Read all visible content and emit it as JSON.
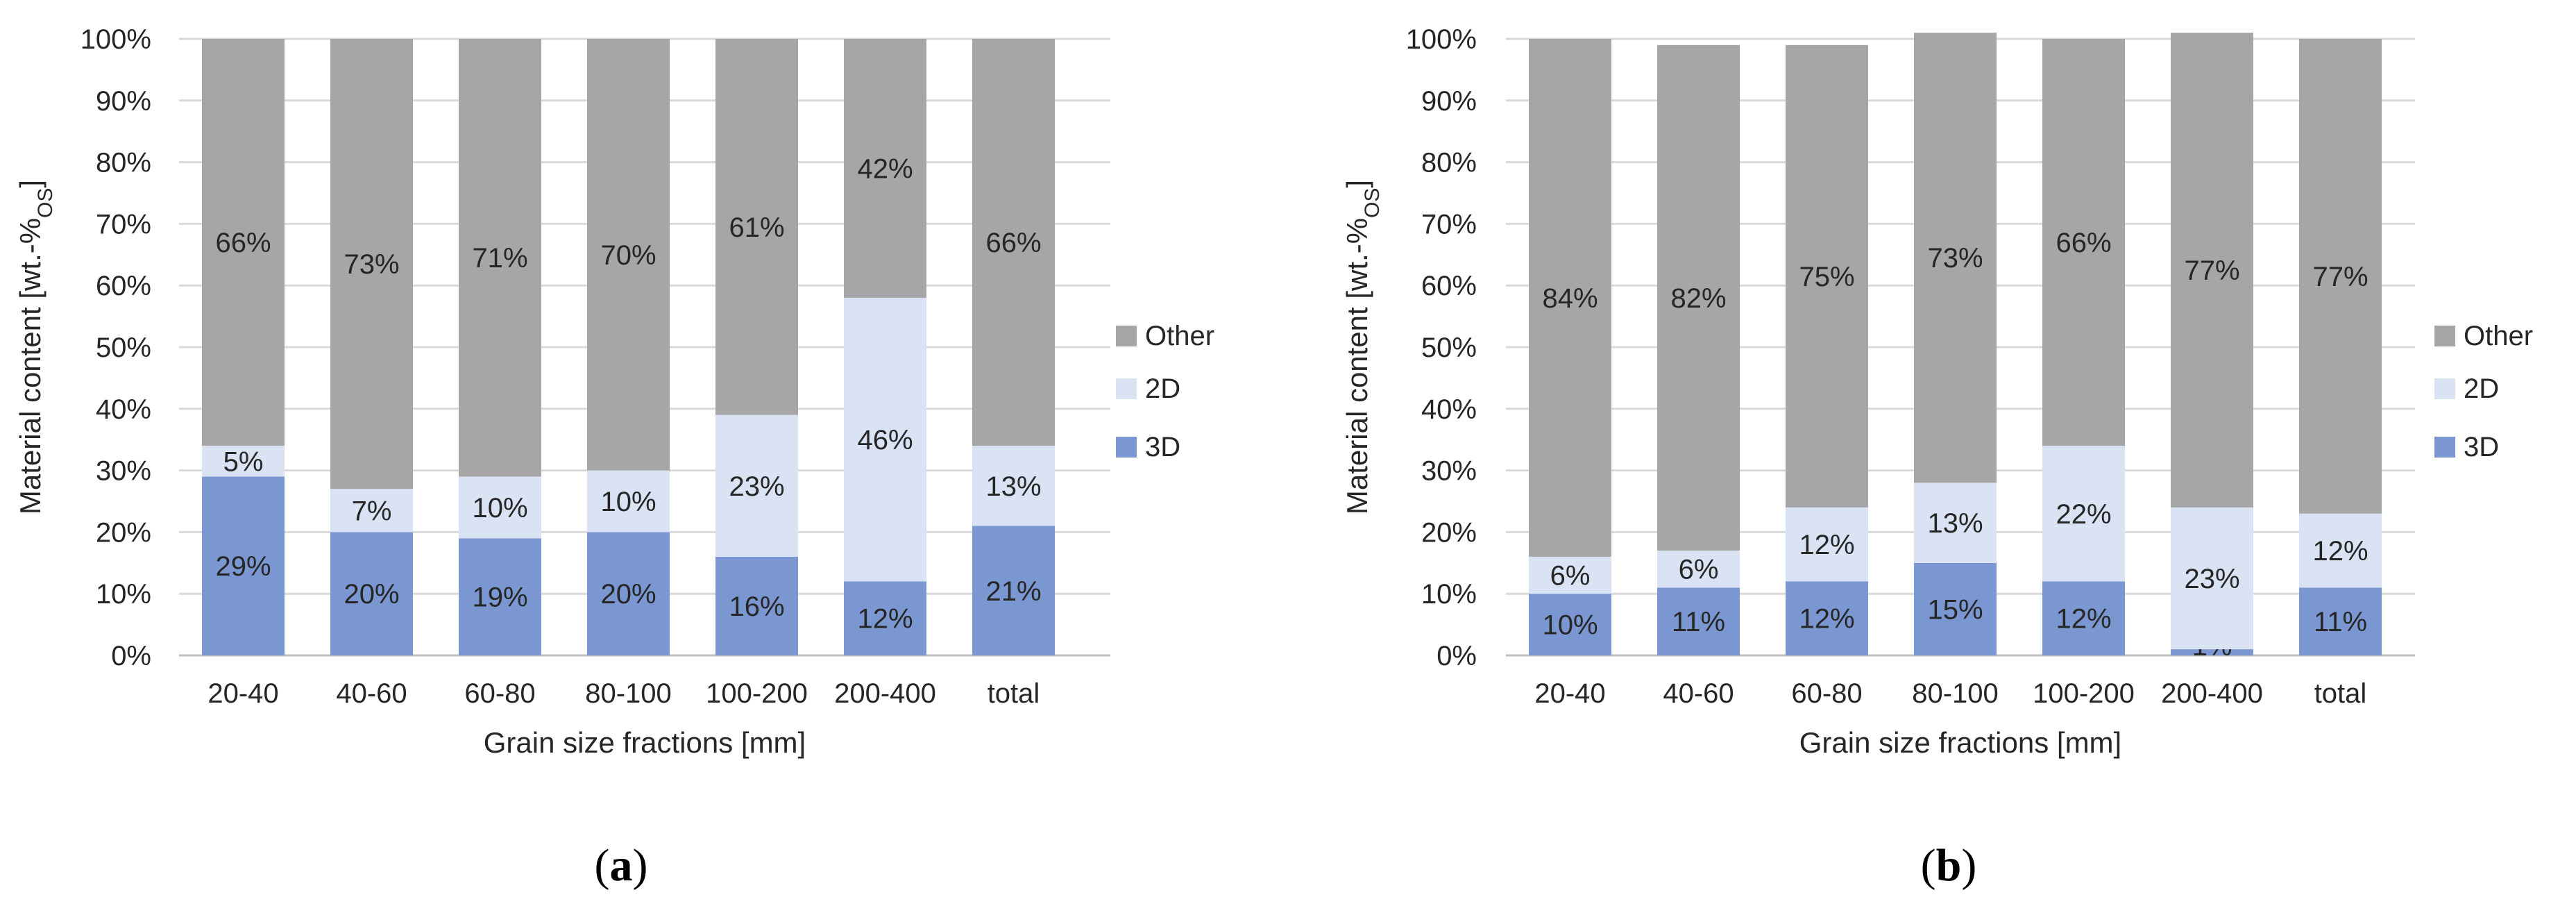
{
  "panels": [
    {
      "caption_letter": "a",
      "chart_data": {
        "type": "bar",
        "stacked": true,
        "percent": true,
        "categories": [
          "20-40",
          "40-60",
          "60-80",
          "80-100",
          "100-200",
          "200-400",
          "total"
        ],
        "series": [
          {
            "name": "3D",
            "values": [
              29,
              20,
              19,
              20,
              16,
              12,
              21
            ],
            "color": "#7b97d1"
          },
          {
            "name": "2D",
            "values": [
              5,
              7,
              10,
              10,
              23,
              46,
              13
            ],
            "color": "#dae3f4"
          },
          {
            "name": "Other",
            "values": [
              66,
              73,
              71,
              70,
              61,
              42,
              66
            ],
            "color": "#a6a6a6"
          }
        ],
        "data_labels": {
          "3D": [
            "29%",
            "20%",
            "19%",
            "20%",
            "16%",
            "12%",
            "21%"
          ],
          "2D": [
            "5%",
            "7%",
            "10%",
            "10%",
            "23%",
            "46%",
            "13%"
          ],
          "Other": [
            "66%",
            "73%",
            "71%",
            "70%",
            "61%",
            "42%",
            "66%"
          ]
        },
        "xlabel": "Grain size fractions [mm]",
        "ylabel": "Material content [wt.-%",
        "ylabel_sub": "OS",
        "ylabel_end": "]",
        "ylim": [
          0,
          100
        ],
        "yticks": [
          "0%",
          "10%",
          "20%",
          "30%",
          "40%",
          "50%",
          "60%",
          "70%",
          "80%",
          "90%",
          "100%"
        ],
        "legend": [
          "Other",
          "2D",
          "3D"
        ],
        "legend_placement": "right",
        "grid": true
      }
    },
    {
      "caption_letter": "b",
      "chart_data": {
        "type": "bar",
        "stacked": true,
        "percent": true,
        "categories": [
          "20-40",
          "40-60",
          "60-80",
          "80-100",
          "100-200",
          "200-400",
          "total"
        ],
        "series": [
          {
            "name": "3D",
            "values": [
              10,
              11,
              12,
              15,
              12,
              1,
              11
            ],
            "color": "#7b97d1"
          },
          {
            "name": "2D",
            "values": [
              6,
              6,
              12,
              13,
              22,
              23,
              12
            ],
            "color": "#dae3f4"
          },
          {
            "name": "Other",
            "values": [
              84,
              82,
              75,
              73,
              66,
              77,
              77
            ],
            "color": "#a6a6a6"
          }
        ],
        "data_labels": {
          "3D": [
            "10%",
            "11%",
            "12%",
            "15%",
            "12%",
            "1%",
            "11%"
          ],
          "2D": [
            "6%",
            "6%",
            "12%",
            "13%",
            "22%",
            "23%",
            "12%"
          ],
          "Other": [
            "84%",
            "82%",
            "75%",
            "73%",
            "66%",
            "77%",
            "77%"
          ]
        },
        "xlabel": "Grain size fractions [mm]",
        "ylabel": "Material content [wt.-%",
        "ylabel_sub": "OS",
        "ylabel_end": "]",
        "ylim": [
          0,
          100
        ],
        "yticks": [
          "0%",
          "10%",
          "20%",
          "30%",
          "40%",
          "50%",
          "60%",
          "70%",
          "80%",
          "90%",
          "100%"
        ],
        "legend": [
          "Other",
          "2D",
          "3D"
        ],
        "legend_placement": "right",
        "grid": true
      }
    }
  ],
  "colors": {
    "grid": "#d9d9d9",
    "axis": "#bfbfbf",
    "text": "#262626",
    "caption": "#000000"
  }
}
